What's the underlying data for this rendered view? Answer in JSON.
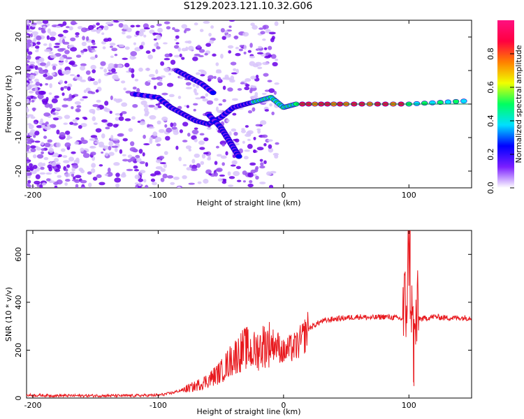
{
  "title": "S129.2023.121.10.32.G06",
  "chart_data": [
    {
      "type": "heatmap",
      "title": "S129.2023.121.10.32.G06",
      "xlabel": "Height of straight line (km)",
      "ylabel": "Frequency (Hz)",
      "xlim": [
        -205,
        150
      ],
      "ylim": [
        -25,
        25
      ],
      "x_ticks": [
        -200,
        -100,
        0,
        100
      ],
      "y_ticks": [
        -20,
        -10,
        0,
        10,
        20
      ],
      "colorbar": {
        "label": "Normalized spectral amplitude",
        "range": [
          0,
          1
        ],
        "ticks": [
          "0.0",
          "0.2",
          "0.4",
          "0.6",
          "0.8"
        ],
        "colors": [
          "#ffffff",
          "#7b1fff",
          "#0000ff",
          "#00e0ff",
          "#00ff60",
          "#f0ff00",
          "#ff8000",
          "#ff0040",
          "#ff1080"
        ]
      },
      "features": [
        {
          "name": "main-trace",
          "x": [
            -120,
            -100,
            -90,
            -80,
            -70,
            -60,
            -50,
            -40,
            -30,
            -20,
            -10,
            0,
            10,
            50,
            100,
            150
          ],
          "y": [
            3,
            2,
            -1,
            -3,
            -5,
            -6,
            -4,
            -1,
            0,
            1,
            2,
            -1,
            0,
            0,
            0,
            1
          ]
        },
        {
          "name": "upper-branch",
          "x": [
            -85,
            -75,
            -65,
            -55
          ],
          "y": [
            10,
            8,
            6,
            3
          ]
        },
        {
          "name": "lower-branch",
          "x": [
            -60,
            -50,
            -45,
            -40,
            -35
          ],
          "y": [
            -3,
            -7,
            -10,
            -13,
            -16
          ]
        }
      ]
    },
    {
      "type": "line",
      "xlabel": "Height of straight line (km)",
      "ylabel": "SNR (10 * v/v)",
      "xlim": [
        -205,
        150
      ],
      "ylim": [
        0,
        700
      ],
      "x_ticks": [
        -200,
        -100,
        0,
        100
      ],
      "y_ticks": [
        0,
        200,
        400,
        600
      ],
      "series": [
        {
          "name": "SNR",
          "color": "#e8191e",
          "x": [
            -205,
            -180,
            -160,
            -140,
            -120,
            -100,
            -90,
            -80,
            -70,
            -60,
            -50,
            -40,
            -35,
            -30,
            -25,
            -20,
            -15,
            -10,
            -5,
            0,
            5,
            10,
            15,
            20,
            30,
            40,
            50,
            60,
            70,
            80,
            90,
            95,
            98,
            100,
            102,
            104,
            106,
            110,
            120,
            130,
            140,
            150
          ],
          "y": [
            12,
            10,
            10,
            10,
            10,
            12,
            20,
            35,
            50,
            75,
            110,
            170,
            190,
            210,
            190,
            205,
            225,
            230,
            220,
            190,
            205,
            215,
            245,
            290,
            320,
            330,
            335,
            340,
            335,
            340,
            335,
            330,
            400,
            640,
            380,
            200,
            340,
            330,
            340,
            335,
            335,
            335
          ]
        }
      ],
      "annotations": [
        {
          "name": "spike-high",
          "x": 101,
          "y": 700
        },
        {
          "name": "spike-low",
          "x": 104,
          "y": 50
        }
      ]
    }
  ]
}
